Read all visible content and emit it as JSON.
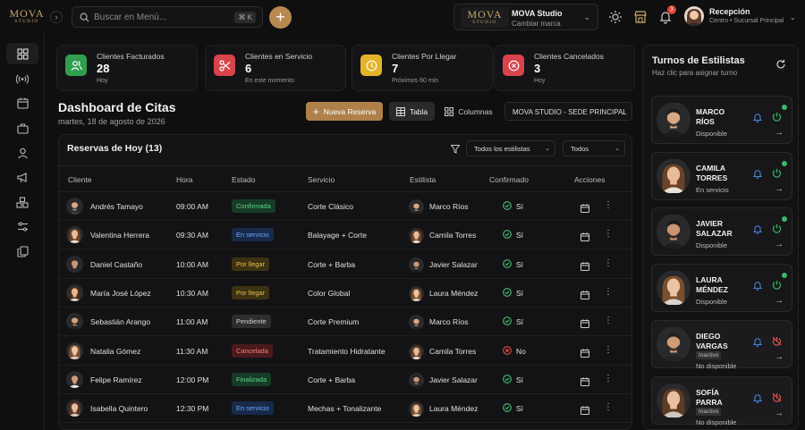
{
  "brand_logo": {
    "name": "MOVA",
    "sub": "STUDIO"
  },
  "search": {
    "placeholder": "Buscar en Menú...",
    "shortcut": "⌘ K"
  },
  "studio_switch": {
    "logo_name": "MOVA",
    "logo_sub": "STUDIO",
    "name": "MOVA Studio",
    "action": "Cambiar marca"
  },
  "notifications": {
    "count": "3"
  },
  "user": {
    "name": "Recepción",
    "location": "Centro • Sucursal Principal"
  },
  "stats": [
    {
      "title": "Clientes Facturados",
      "value": "28",
      "sub": "Hoy",
      "color": "#2f9e4f",
      "icon": "users-icon"
    },
    {
      "title": "Clientes en Servicio",
      "value": "6",
      "sub": "En este momento",
      "color": "#d9434b",
      "icon": "scissors-icon"
    },
    {
      "title": "Clientes Por Llegar",
      "value": "7",
      "sub": "Próximos 60 min",
      "color": "#e4b42a",
      "icon": "clock-icon"
    },
    {
      "title": "Clientes Cancelados",
      "value": "3",
      "sub": "Hoy",
      "color": "#d9434b",
      "icon": "x-circle-icon"
    }
  ],
  "dashboard": {
    "title": "Dashboard de Citas",
    "date": "martes, 18 de agosto de 2026",
    "new_button": "Nueva Reserva",
    "table_button": "Tabla",
    "columns_button": "Columnas",
    "sede": "MOVA STUDIO - SEDE PRINCIPAL"
  },
  "table": {
    "title": "Reservas de Hoy (13)",
    "filter_stylists": "Todos los estilistas",
    "filter_all": "Todos",
    "headers": {
      "client": "Cliente",
      "time": "Hora",
      "status": "Estado",
      "service": "Servicio",
      "stylist": "Estilista",
      "confirmed": "Confirmado",
      "actions": "Acciones"
    },
    "rows": [
      {
        "client": "Andrés Tamayo",
        "time": "09:00 AM",
        "status": "Confirmada",
        "service": "Corte Clásico",
        "stylist": "Marco Ríos",
        "confirmed": "Sí"
      },
      {
        "client": "Valentina Herrera",
        "time": "09:30 AM",
        "status": "En servicio",
        "service": "Balayage + Corte",
        "stylist": "Camila Torres",
        "confirmed": "Sí"
      },
      {
        "client": "Daniel Castaño",
        "time": "10:00 AM",
        "status": "Por llegar",
        "service": "Corte + Barba",
        "stylist": "Javier Salazar",
        "confirmed": "Sí"
      },
      {
        "client": "María José López",
        "time": "10:30 AM",
        "status": "Por llegar",
        "service": "Color Global",
        "stylist": "Laura Méndez",
        "confirmed": "Sí"
      },
      {
        "client": "Sebastián Arango",
        "time": "11:00 AM",
        "status": "Pendiente",
        "service": "Corte Premium",
        "stylist": "Marco Ríos",
        "confirmed": "Sí"
      },
      {
        "client": "Natalia Gómez",
        "time": "11:30 AM",
        "status": "Cancelada",
        "service": "Tratamiento Hidratante",
        "stylist": "Camila Torres",
        "confirmed": "No"
      },
      {
        "client": "Felipe Ramírez",
        "time": "12:00 PM",
        "status": "Finalizada",
        "service": "Corte + Barba",
        "stylist": "Javier Salazar",
        "confirmed": "Sí"
      },
      {
        "client": "Isabella Quintero",
        "time": "12:30 PM",
        "status": "En servicio",
        "service": "Mechas + Tonalizante",
        "stylist": "Laura Méndez",
        "confirmed": "Sí"
      }
    ]
  },
  "status_colors": {
    "Confirmada": {
      "bg": "#163b26",
      "fg": "#5fd68a"
    },
    "En servicio": {
      "bg": "#172a4a",
      "fg": "#6ea8ff"
    },
    "Por llegar": {
      "bg": "#3d3212",
      "fg": "#e8c04a"
    },
    "Pendiente": {
      "bg": "#2e2e30",
      "fg": "#d0d0d2"
    },
    "Cancelada": {
      "bg": "#4a1a1c",
      "fg": "#ff7b7b"
    },
    "Finalizada": {
      "bg": "#163b26",
      "fg": "#5fd68a"
    }
  },
  "panel": {
    "title": "Turnos de Estilistas",
    "subtitle": "Haz clic para asignar turno",
    "stylists": [
      {
        "first": "MARCO",
        "last": "RÍOS",
        "status": "Disponible",
        "active": true
      },
      {
        "first": "CAMILA",
        "last": "TORRES",
        "status": "En servicio",
        "active": true
      },
      {
        "first": "JAVIER",
        "last": "SALAZAR",
        "status": "Disponible",
        "active": true
      },
      {
        "first": "LAURA",
        "last": "MÉNDEZ",
        "status": "Disponible",
        "active": true
      },
      {
        "first": "DIEGO",
        "last": "VARGAS",
        "status": "No disponible",
        "badge": "Inactivo",
        "active": false
      },
      {
        "first": "SOFÍA",
        "last": "PARRA",
        "status": "No disponible",
        "badge": "Inactivo",
        "active": false
      }
    ]
  }
}
